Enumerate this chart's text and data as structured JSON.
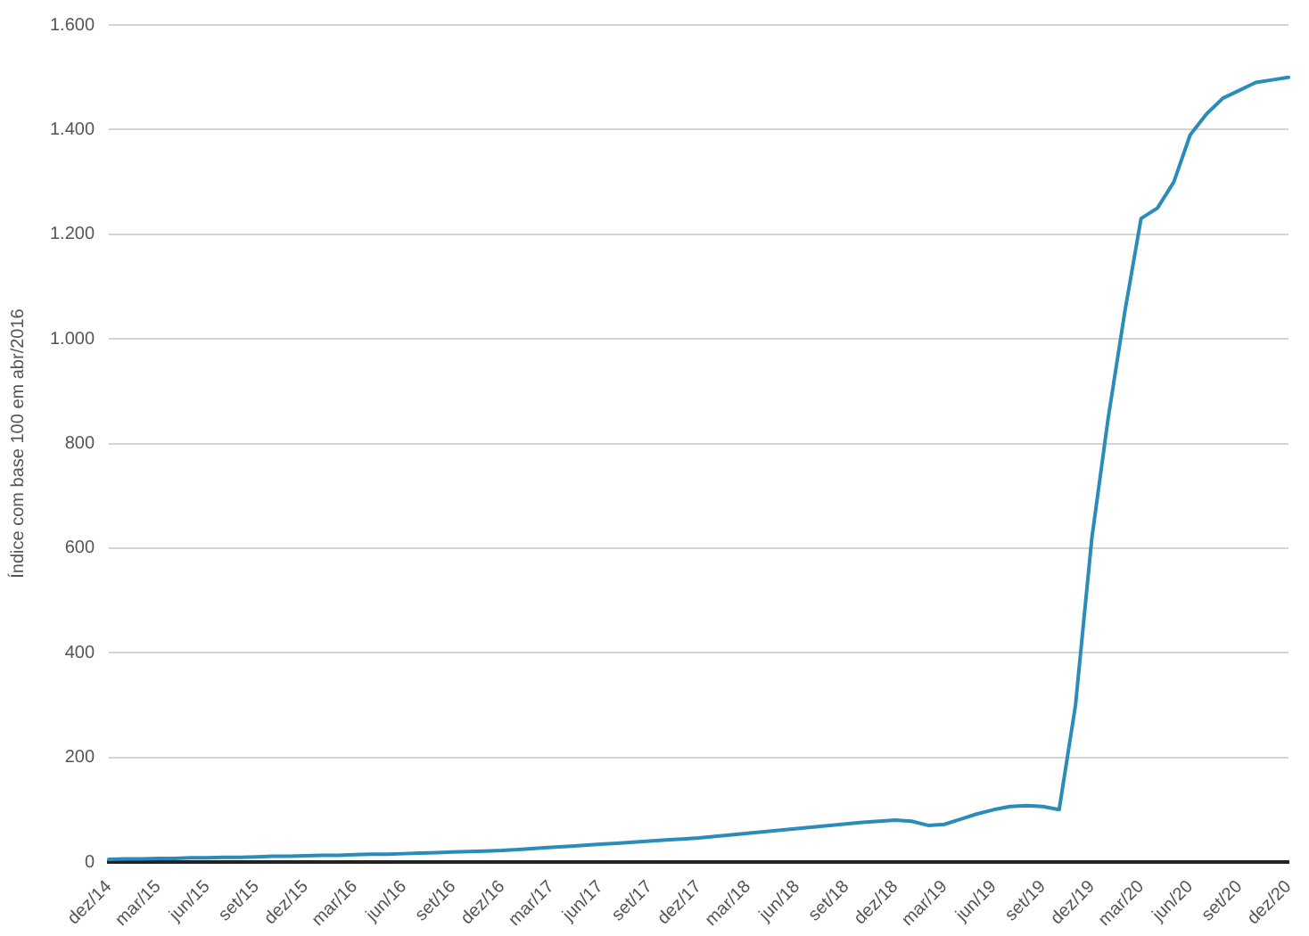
{
  "chart_data": {
    "type": "line",
    "ylabel": "Índice com base 100 em abr/2016",
    "categories": [
      "dez/14",
      null,
      null,
      "mar/15",
      null,
      null,
      "jun/15",
      null,
      null,
      "set/15",
      null,
      null,
      "dez/15",
      null,
      null,
      "mar/16",
      null,
      null,
      "jun/16",
      null,
      null,
      "set/16",
      null,
      null,
      "dez/16",
      null,
      null,
      "mar/17",
      null,
      null,
      "jun/17",
      null,
      null,
      "set/17",
      null,
      null,
      "dez/17",
      null,
      null,
      "mar/18",
      null,
      null,
      "jun/18",
      null,
      null,
      "set/18",
      null,
      null,
      "dez/18",
      null,
      null,
      "mar/19",
      null,
      null,
      "jun/19",
      null,
      null,
      "set/19",
      null,
      null,
      "dez/19",
      null,
      null,
      "mar/20",
      null,
      null,
      "jun/20",
      null,
      null,
      "set/20",
      null,
      null,
      "dez/20"
    ],
    "series": [
      {
        "color": "#2a8cb8",
        "values": [
          5,
          6,
          6,
          7,
          7,
          8,
          8,
          9,
          9,
          10,
          11,
          11,
          12,
          13,
          13,
          14,
          15,
          15,
          16,
          17,
          18,
          19,
          20,
          21,
          22,
          24,
          26,
          28,
          30,
          32,
          34,
          36,
          38,
          40,
          42,
          44,
          46,
          49,
          52,
          55,
          58,
          61,
          64,
          67,
          70,
          73,
          76,
          78,
          80,
          78,
          70,
          72,
          82,
          92,
          100,
          106,
          108,
          106,
          100,
          300,
          620,
          850,
          1050,
          1230,
          1250,
          1300,
          1390,
          1430,
          1460,
          1475,
          1490,
          1495,
          1500
        ]
      }
    ],
    "ylim": [
      0,
      1600
    ],
    "yticks": [
      0,
      {
        "value": 200,
        "label": "200"
      },
      {
        "value": 400,
        "label": "400"
      },
      {
        "value": 600,
        "label": "600"
      },
      {
        "value": 800,
        "label": "800"
      },
      {
        "value": 1000,
        "label": "1.000"
      },
      {
        "value": 1200,
        "label": "1.200"
      },
      {
        "value": 1400,
        "label": "1.400"
      },
      {
        "value": 1600,
        "label": "1.600"
      }
    ],
    "grid": "y",
    "legend": false,
    "marker": "none",
    "line_style": "solid"
  }
}
